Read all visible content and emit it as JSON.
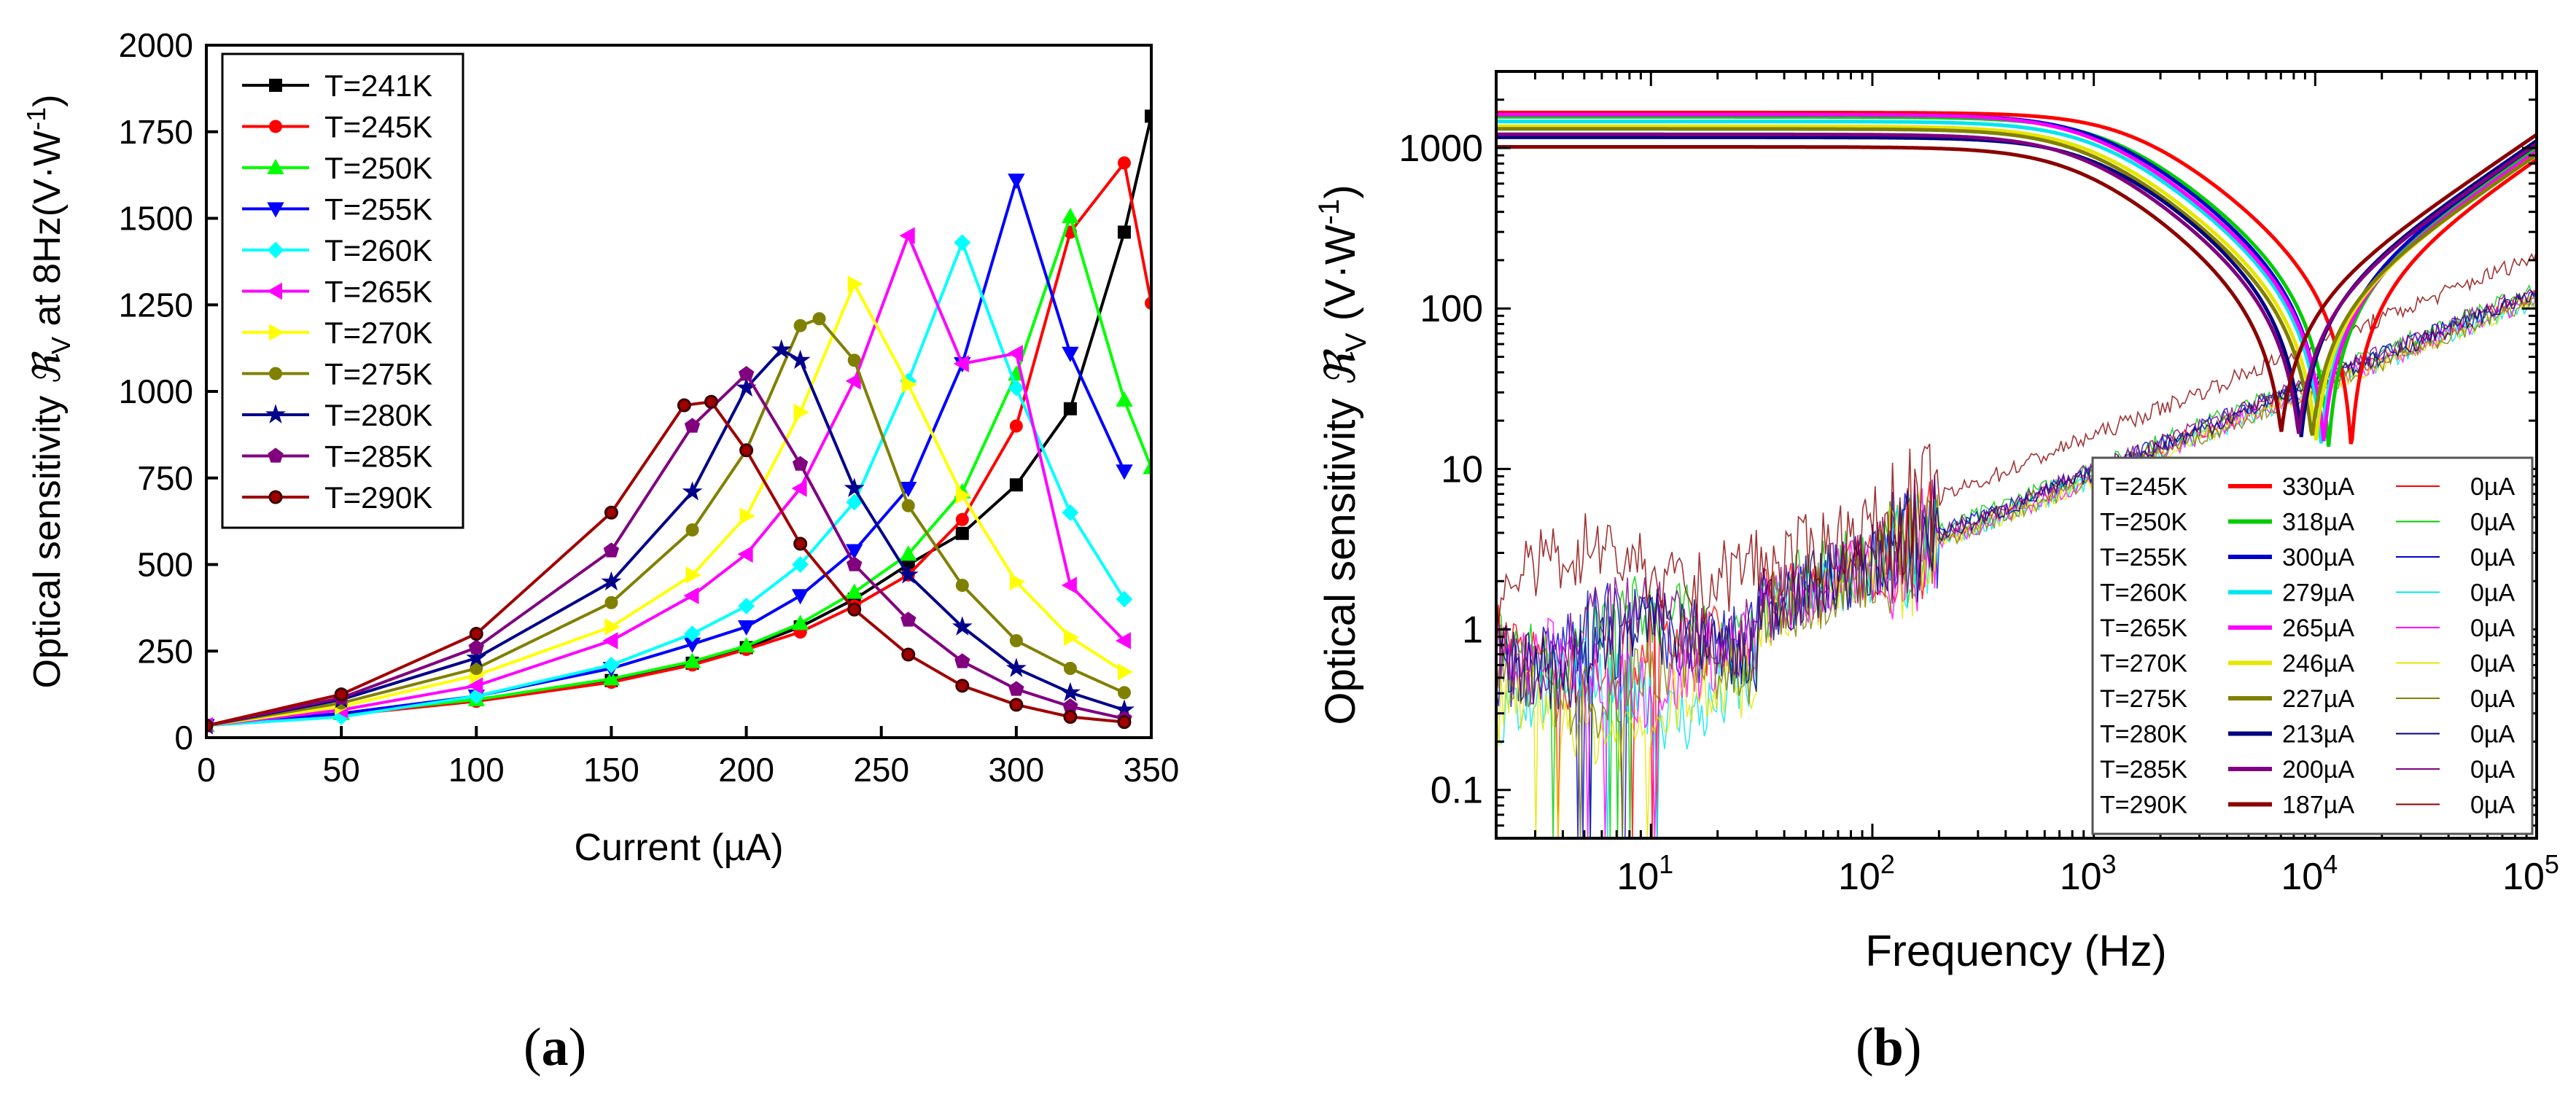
{
  "captions": {
    "a": {
      "open": "(",
      "letter": "a",
      "close": ")"
    },
    "b": {
      "open": "(",
      "letter": "b",
      "close": ")"
    }
  },
  "chart_data": [
    {
      "id": "a",
      "type": "line",
      "xlabel": "Current (µA)",
      "ylabel_main": "Optical sensitivity ",
      "ylabel_symbol": "ℜ",
      "ylabel_sub": "V",
      "ylabel_mid": " at 8Hz(V·W",
      "ylabel_sup": "-1",
      "ylabel_end": ")",
      "xlim": [
        0,
        350
      ],
      "ylim": [
        0,
        2000
      ],
      "xticks": [
        0,
        50,
        100,
        150,
        200,
        250,
        300,
        350
      ],
      "yticks": [
        0,
        250,
        500,
        750,
        1000,
        1250,
        1500,
        1750,
        2000
      ],
      "grid": false,
      "legend_position": "top-left",
      "series": [
        {
          "name": "T=241K",
          "color": "#000000",
          "marker": "square",
          "x": [
            0,
            50,
            100,
            150,
            180,
            200,
            220,
            240,
            260,
            280,
            300,
            320,
            340,
            350
          ],
          "y": [
            35,
            70,
            110,
            165,
            215,
            260,
            320,
            400,
            500,
            590,
            730,
            950,
            1460,
            1795
          ]
        },
        {
          "name": "T=245K",
          "color": "#ff0000",
          "marker": "circle",
          "x": [
            0,
            50,
            100,
            150,
            180,
            200,
            220,
            240,
            260,
            280,
            300,
            320,
            340,
            350
          ],
          "y": [
            35,
            65,
            105,
            160,
            210,
            255,
            305,
            380,
            470,
            630,
            900,
            1460,
            1660,
            1255
          ]
        },
        {
          "name": "T=250K",
          "color": "#00ff00",
          "marker": "triangle-up",
          "x": [
            0,
            50,
            100,
            150,
            180,
            200,
            220,
            240,
            260,
            280,
            300,
            320,
            340,
            350
          ],
          "y": [
            35,
            70,
            110,
            170,
            220,
            265,
            330,
            420,
            530,
            710,
            1050,
            1505,
            975,
            780
          ]
        },
        {
          "name": "T=255K",
          "color": "#0000ff",
          "marker": "triangle-down",
          "x": [
            0,
            50,
            100,
            150,
            180,
            200,
            220,
            240,
            260,
            280,
            300,
            320,
            340
          ],
          "y": [
            35,
            70,
            120,
            200,
            270,
            320,
            410,
            540,
            720,
            1080,
            1610,
            1110,
            770
          ]
        },
        {
          "name": "T=260K",
          "color": "#00ffff",
          "marker": "diamond",
          "x": [
            0,
            50,
            100,
            150,
            180,
            200,
            220,
            240,
            260,
            280,
            300,
            320,
            340
          ],
          "y": [
            35,
            60,
            120,
            210,
            300,
            380,
            500,
            680,
            1030,
            1430,
            1010,
            650,
            400
          ]
        },
        {
          "name": "T=265K",
          "color": "#ff00ff",
          "marker": "triangle-left",
          "x": [
            0,
            50,
            100,
            150,
            180,
            200,
            220,
            240,
            260,
            280,
            300,
            320,
            340
          ],
          "y": [
            35,
            80,
            150,
            280,
            410,
            530,
            720,
            1030,
            1450,
            1080,
            1110,
            440,
            280
          ]
        },
        {
          "name": "T=270K",
          "color": "#ffff00",
          "marker": "triangle-right",
          "x": [
            0,
            50,
            100,
            150,
            180,
            200,
            220,
            240,
            260,
            280,
            300,
            320,
            340
          ],
          "y": [
            35,
            90,
            180,
            320,
            470,
            640,
            940,
            1310,
            1020,
            700,
            450,
            290,
            190
          ]
        },
        {
          "name": "T=275K",
          "color": "#808000",
          "marker": "circle",
          "x": [
            0,
            50,
            100,
            150,
            180,
            200,
            220,
            227,
            240,
            260,
            280,
            300,
            320,
            340
          ],
          "y": [
            35,
            100,
            200,
            390,
            600,
            830,
            1190,
            1210,
            1090,
            670,
            440,
            280,
            200,
            130
          ]
        },
        {
          "name": "T=280K",
          "color": "#00008b",
          "marker": "star",
          "x": [
            0,
            50,
            100,
            150,
            180,
            200,
            213,
            220,
            240,
            260,
            280,
            300,
            320,
            340
          ],
          "y": [
            35,
            110,
            230,
            450,
            710,
            1010,
            1120,
            1090,
            720,
            470,
            320,
            200,
            130,
            80
          ]
        },
        {
          "name": "T=285K",
          "color": "#800080",
          "marker": "pentagon",
          "x": [
            0,
            50,
            100,
            150,
            180,
            200,
            220,
            240,
            260,
            280,
            300,
            320,
            340
          ],
          "y": [
            35,
            115,
            260,
            540,
            900,
            1050,
            790,
            500,
            340,
            220,
            140,
            90,
            55
          ]
        },
        {
          "name": "T=290K",
          "color": "#a00000",
          "marker": "sphere",
          "x": [
            0,
            50,
            100,
            150,
            177,
            187,
            200,
            220,
            240,
            260,
            280,
            300,
            320,
            340
          ],
          "y": [
            35,
            125,
            300,
            650,
            960,
            970,
            830,
            560,
            370,
            240,
            150,
            95,
            60,
            45
          ]
        }
      ]
    },
    {
      "id": "b",
      "type": "line",
      "xlabel": "Frequency (Hz)",
      "ylabel_main": "Optical sensitivity ",
      "ylabel_symbol": "ℜ",
      "ylabel_sub": "V",
      "ylabel_mid": " (V·W",
      "ylabel_sup": "-1",
      "ylabel_end": ")",
      "xscale": "log",
      "yscale": "log",
      "xlim": [
        2,
        100000
      ],
      "ylim": [
        0.05,
        3000
      ],
      "xticks": [
        {
          "base": "10",
          "exp": "1",
          "value": 10
        },
        {
          "base": "10",
          "exp": "2",
          "value": 100
        },
        {
          "base": "10",
          "exp": "3",
          "value": 1000
        },
        {
          "base": "10",
          "exp": "4",
          "value": 10000
        },
        {
          "base": "10",
          "exp": "5",
          "value": 100000
        }
      ],
      "yticks": [
        {
          "label": "0.1",
          "value": 0.1
        },
        {
          "label": "1",
          "value": 1
        },
        {
          "label": "10",
          "value": 10
        },
        {
          "label": "100",
          "value": 100
        },
        {
          "label": "1000",
          "value": 1000
        }
      ],
      "grid": false,
      "legend_position": "bottom-right",
      "series": [
        {
          "name": "T=245K",
          "bias": "330µA",
          "zero": "0µA",
          "color": "#ff0000",
          "lowf": 1650,
          "notch": 3600,
          "hif": 850,
          "noise_slope": 0.56,
          "noise_amp": 0.72
        },
        {
          "name": "T=250K",
          "bias": "318µA",
          "zero": "0µA",
          "color": "#00cc00",
          "lowf": 1550,
          "notch": 2850,
          "hif": 1000,
          "noise_slope": 0.56,
          "noise_amp": 0.95
        },
        {
          "name": "T=255K",
          "bias": "300µA",
          "zero": "0µA",
          "color": "#0000cc",
          "lowf": 1600,
          "notch": 2600,
          "hif": 1050,
          "noise_slope": 0.56,
          "noise_amp": 0.85
        },
        {
          "name": "T=260K",
          "bias": "279µA",
          "zero": "0µA",
          "color": "#00e5ee",
          "lowf": 1450,
          "notch": 2500,
          "hif": 950,
          "noise_slope": 0.56,
          "noise_amp": 0.4
        },
        {
          "name": "T=265K",
          "bias": "265µA",
          "zero": "0µA",
          "color": "#ff00ff",
          "lowf": 1600,
          "notch": 2400,
          "hif": 950,
          "noise_slope": 0.56,
          "noise_amp": 0.55
        },
        {
          "name": "T=270K",
          "bias": "246µA",
          "zero": "0µA",
          "color": "#e6e600",
          "lowf": 1350,
          "notch": 2300,
          "hif": 900,
          "noise_slope": 0.56,
          "noise_amp": 0.3
        },
        {
          "name": "T=275K",
          "bias": "227µA",
          "zero": "0µA",
          "color": "#808000",
          "lowf": 1300,
          "notch": 2200,
          "hif": 900,
          "noise_slope": 0.56,
          "noise_amp": 0.5
        },
        {
          "name": "T=280K",
          "bias": "213µA",
          "zero": "0µA",
          "color": "#000080",
          "lowf": 1150,
          "notch": 2400,
          "hif": 1100,
          "noise_slope": 0.56,
          "noise_amp": 0.75
        },
        {
          "name": "T=285K",
          "bias": "200µA",
          "zero": "0µA",
          "color": "#800080",
          "lowf": 1200,
          "notch": 2100,
          "hif": 1050,
          "noise_slope": 0.56,
          "noise_amp": 0.9
        },
        {
          "name": "T=290K",
          "bias": "187µA",
          "zero": "0µA",
          "color": "#8b0000",
          "lowf": 1000,
          "notch": 2000,
          "hif": 1200,
          "noise_slope": 0.56,
          "noise_amp": 2.5
        }
      ]
    }
  ]
}
